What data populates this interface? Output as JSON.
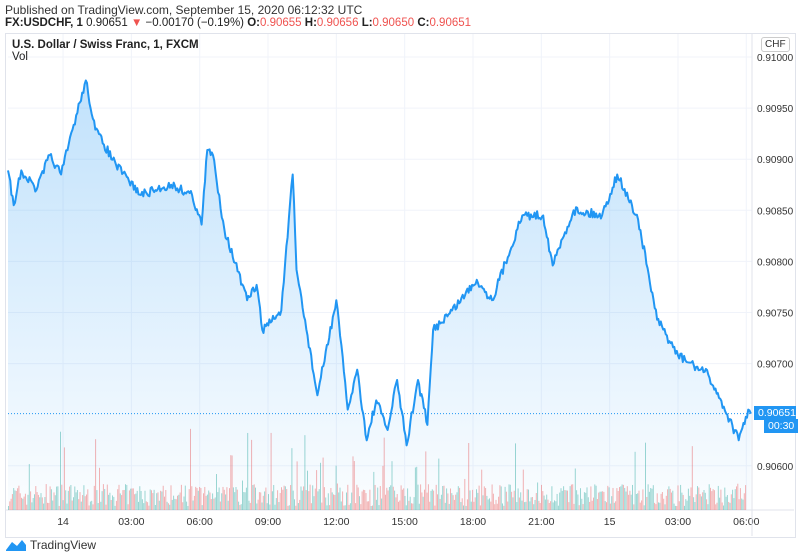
{
  "header": {
    "published": "Published on TradingView.com, September 15, 2020 06:12:32 UTC",
    "symbol": "FX:USDCHF, 1",
    "last": "0.90651",
    "change": "−0.00170 (−0.19%)",
    "open_label": "O:",
    "open": "0.90655",
    "high_label": "H:",
    "high": "0.90656",
    "low_label": "L:",
    "low": "0.90650",
    "close_label": "C:",
    "close": "0.90651",
    "direction_icon": "triangle-down-icon"
  },
  "legend": {
    "title": "U.S. Dollar / Swiss Franc, 1, FXCM",
    "volume": "Vol"
  },
  "currency": "CHF",
  "price_label": "0.90651",
  "countdown": "00:30",
  "brand": "TradingView",
  "colors": {
    "line": "#2196f3",
    "up_volume": "#26a69a",
    "down_volume": "#ef5350",
    "label": "#2196f3"
  },
  "chart_data": {
    "type": "area",
    "title": "U.S. Dollar / Swiss Franc, 1, FXCM",
    "ylim": [
      0.9056,
      0.9105
    ],
    "y_ticks": [
      "0.91000",
      "0.90950",
      "0.90900",
      "0.90850",
      "0.90800",
      "0.90750",
      "0.90700",
      "0.90600"
    ],
    "x_tick_labels": [
      "14",
      "03:00",
      "06:00",
      "09:00",
      "12:00",
      "15:00",
      "18:00",
      "21:00",
      "15",
      "03:00",
      "06:00"
    ],
    "x_ticks": [
      "2020-09-14 00:00",
      "2020-09-14 03:00",
      "2020-09-14 06:00",
      "2020-09-14 09:00",
      "2020-09-14 12:00",
      "2020-09-14 15:00",
      "2020-09-14 18:00",
      "2020-09-14 21:00",
      "2020-09-15 00:00",
      "2020-09-15 03:00",
      "2020-09-15 06:00"
    ],
    "xlim": [
      "2020-09-13 21:35",
      "2020-09-15 06:15"
    ],
    "last_price": 0.90651,
    "series": [
      {
        "points": [
          [
            "2020-09-13 21:35",
            0.90889
          ],
          [
            "2020-09-13 21:50",
            0.90855
          ],
          [
            "2020-09-13 22:10",
            0.90889
          ],
          [
            "2020-09-13 22:50",
            0.9087
          ],
          [
            "2020-09-13 23:25",
            0.90904
          ],
          [
            "2020-09-13 23:55",
            0.90885
          ],
          [
            "2020-09-14 00:25",
            0.90929
          ],
          [
            "2020-09-14 01:00",
            0.90977
          ],
          [
            "2020-09-14 01:25",
            0.90929
          ],
          [
            "2020-09-14 02:20",
            0.90894
          ],
          [
            "2020-09-14 03:25",
            0.90865
          ],
          [
            "2020-09-14 04:45",
            0.90875
          ],
          [
            "2020-09-14 05:40",
            0.90865
          ],
          [
            "2020-09-14 06:05",
            0.90836
          ],
          [
            "2020-09-14 06:20",
            0.90909
          ],
          [
            "2020-09-14 06:35",
            0.90904
          ],
          [
            "2020-09-14 07:05",
            0.90831
          ],
          [
            "2020-09-14 08:05",
            0.90762
          ],
          [
            "2020-09-14 08:30",
            0.90777
          ],
          [
            "2020-09-14 08:45",
            0.90733
          ],
          [
            "2020-09-14 09:35",
            0.90752
          ],
          [
            "2020-09-14 10:05",
            0.90885
          ],
          [
            "2020-09-14 10:15",
            0.90792
          ],
          [
            "2020-09-14 11:10",
            0.90669
          ],
          [
            "2020-09-14 12:00",
            0.90762
          ],
          [
            "2020-09-14 12:30",
            0.90655
          ],
          [
            "2020-09-14 12:55",
            0.90694
          ],
          [
            "2020-09-14 13:20",
            0.90625
          ],
          [
            "2020-09-14 13:45",
            0.90664
          ],
          [
            "2020-09-14 14:15",
            0.90635
          ],
          [
            "2020-09-14 14:40",
            0.90684
          ],
          [
            "2020-09-14 15:05",
            0.9062
          ],
          [
            "2020-09-14 15:35",
            0.90684
          ],
          [
            "2020-09-14 16:00",
            0.9064
          ],
          [
            "2020-09-14 16:15",
            0.90733
          ],
          [
            "2020-09-14 17:05",
            0.90752
          ],
          [
            "2020-09-14 18:10",
            0.90782
          ],
          [
            "2020-09-14 18:50",
            0.90762
          ],
          [
            "2020-09-14 20:10",
            0.90845
          ],
          [
            "2020-09-14 21:05",
            0.90845
          ],
          [
            "2020-09-14 21:30",
            0.90796
          ],
          [
            "2020-09-14 22:25",
            0.9085
          ],
          [
            "2020-09-14 23:40",
            0.90845
          ],
          [
            "2020-09-15 00:20",
            0.90885
          ],
          [
            "2020-09-15 01:15",
            0.90841
          ],
          [
            "2020-09-15 02:05",
            0.90743
          ],
          [
            "2020-09-15 03:00",
            0.90708
          ],
          [
            "2020-09-15 04:20",
            0.90689
          ],
          [
            "2020-09-15 05:10",
            0.9065
          ],
          [
            "2020-09-15 05:40",
            0.90625
          ],
          [
            "2020-09-15 06:05",
            0.90655
          ],
          [
            "2020-09-15 06:12",
            0.90651
          ]
        ]
      }
    ]
  }
}
